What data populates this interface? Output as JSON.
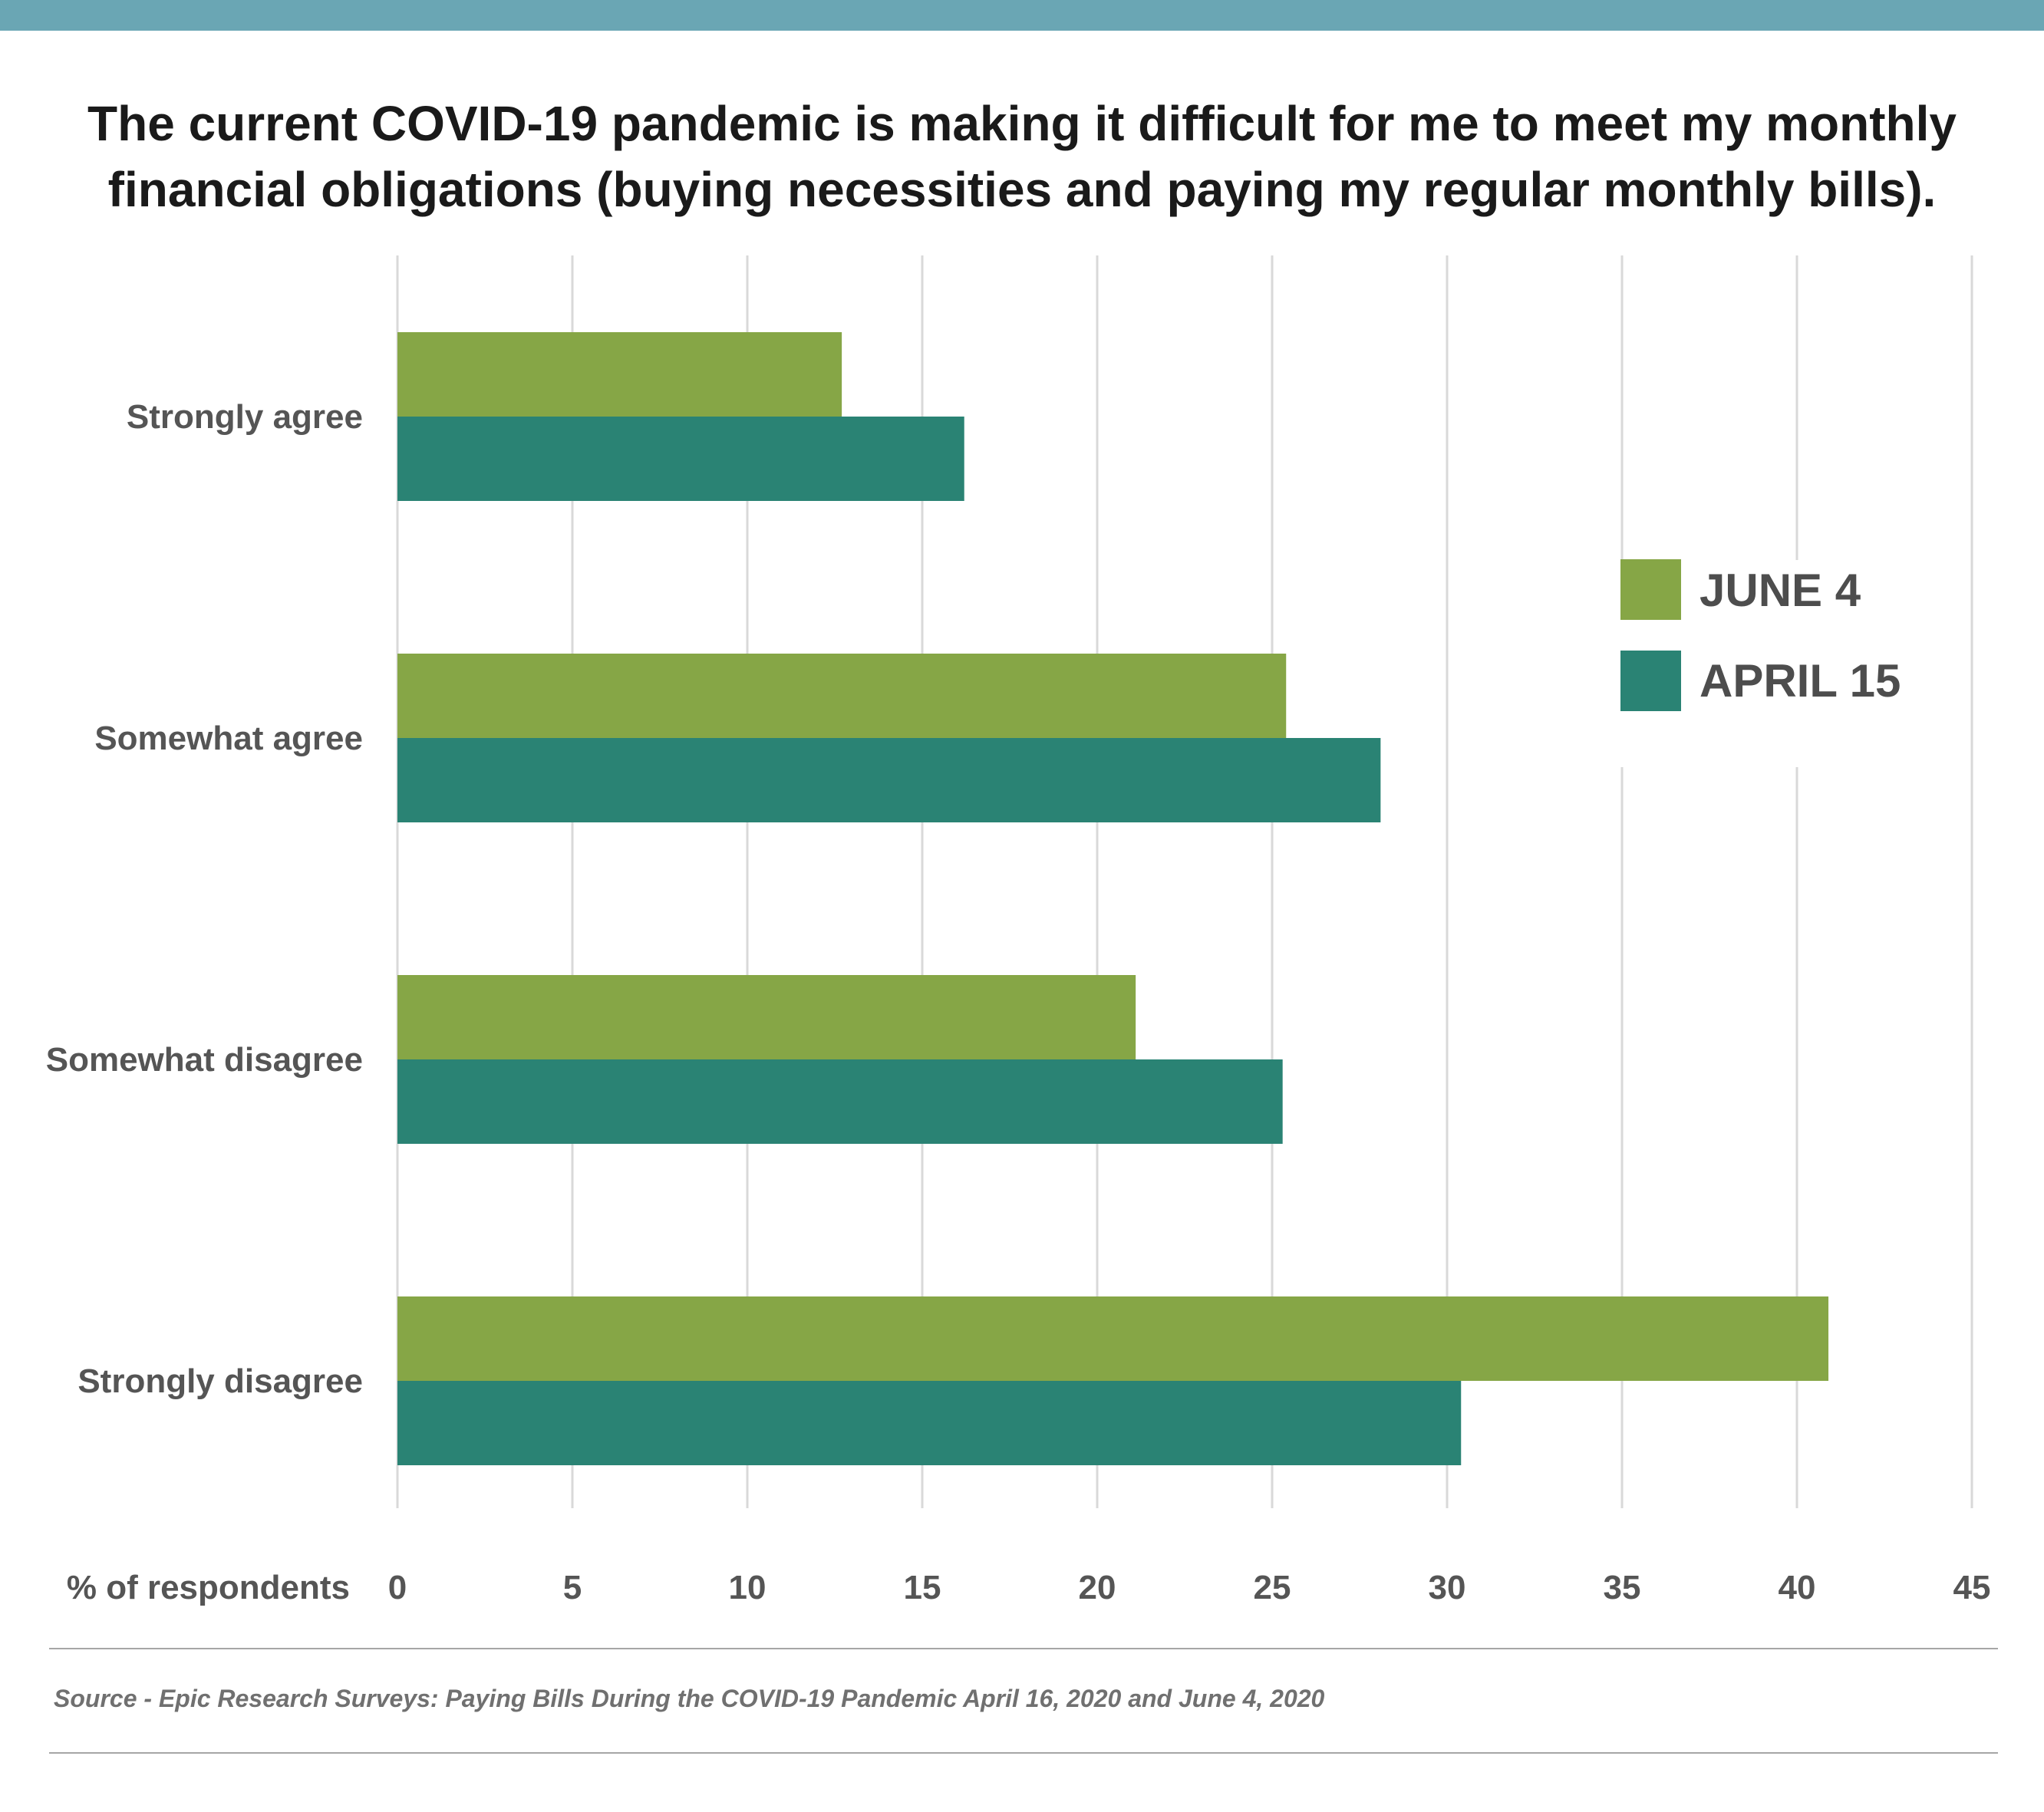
{
  "title_lines": [
    "The current COVID-19 pandemic is making it difficult for me to meet my monthly",
    "financial obligations (buying necessities and paying my regular monthly bills)."
  ],
  "source": "Source - Epic Research Surveys: Paying Bills During the COVID-19 Pandemic April 16, 2020 and June 4, 2020",
  "colors": {
    "top_bar": "#6aa6b4",
    "june": "#86a646",
    "april": "#2a8374",
    "grid": "#d9d9d9"
  },
  "chart_data": {
    "type": "bar",
    "orientation": "horizontal",
    "title": "The current COVID-19 pandemic is making it difficult for me to meet my monthly financial obligations (buying necessities and paying my regular monthly bills).",
    "categories": [
      "Strongly agree",
      "Somewhat agree",
      "Somewhat disagree",
      "Strongly disagree"
    ],
    "series": [
      {
        "name": "JUNE 4",
        "values": [
          12.7,
          25.4,
          21.1,
          40.9
        ]
      },
      {
        "name": "APRIL 15",
        "values": [
          16.2,
          28.1,
          25.3,
          30.4
        ]
      }
    ],
    "xlabel": "% of respondents",
    "ylabel": "",
    "xlim": [
      0,
      45
    ],
    "xticks": [
      0,
      5,
      10,
      15,
      20,
      25,
      30,
      35,
      40,
      45
    ],
    "grid": true,
    "legend": "right"
  }
}
